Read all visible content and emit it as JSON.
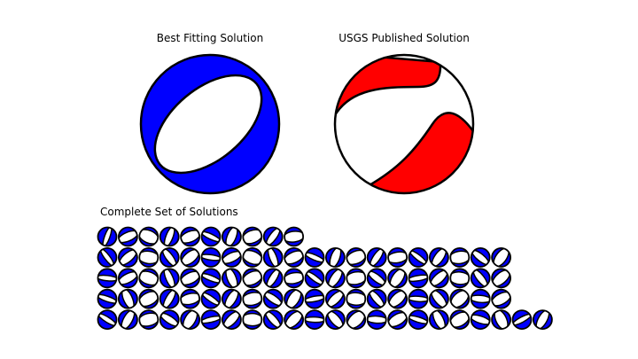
{
  "titles": {
    "best": "Best Fitting Solution",
    "usgs": "USGS Published Solution",
    "set": "Complete Set of Solutions"
  },
  "colors": {
    "best_fill": "#0000ff",
    "usgs_fill": "#ff0000",
    "background": "#ffffff",
    "outline": "#000000"
  },
  "solutions": {
    "row_counts": [
      10,
      20,
      20,
      20,
      22
    ],
    "total": 92
  }
}
